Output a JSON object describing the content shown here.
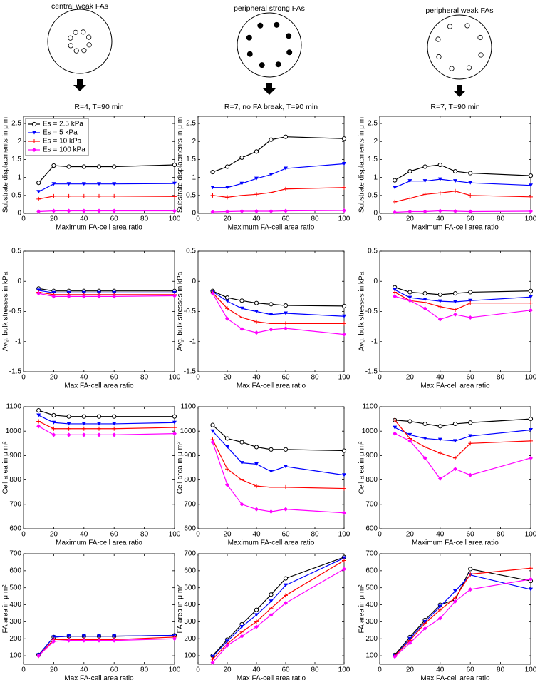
{
  "diagrams": [
    {
      "label": "central weak FAs"
    },
    {
      "label": "peripheral strong FAs"
    },
    {
      "label": "peripheral weak FAs"
    }
  ],
  "chart_data": [
    {
      "type": "line",
      "title": "R=4, T=90 min",
      "xlabel": "Maximum FA-cell area ratio",
      "ylabel": "Substrate displacments in μ m",
      "xlim": [
        0,
        100
      ],
      "xticks": [
        0,
        20,
        40,
        60,
        80,
        100
      ],
      "ylim": [
        0,
        2.7
      ],
      "yticks": [
        0,
        0.5,
        1,
        1.5,
        2,
        2.5
      ],
      "legend": "upper left",
      "x": [
        10,
        20,
        30,
        40,
        50,
        60,
        100
      ],
      "series": [
        {
          "name": "Es = 2.5 kPa",
          "color": "#000000",
          "marker": "o",
          "values": [
            0.85,
            1.33,
            1.3,
            1.3,
            1.3,
            1.3,
            1.35
          ]
        },
        {
          "name": "Es = 5 kPa",
          "color": "#0000ff",
          "marker": "v",
          "values": [
            0.6,
            0.82,
            0.82,
            0.82,
            0.82,
            0.82,
            0.83
          ]
        },
        {
          "name": "Es = 10 kPa",
          "color": "#ff0000",
          "marker": "+",
          "values": [
            0.4,
            0.48,
            0.48,
            0.48,
            0.48,
            0.48,
            0.47
          ]
        },
        {
          "name": "Es = 100 kPa",
          "color": "#ff00ff",
          "marker": "d",
          "values": [
            0.05,
            0.07,
            0.07,
            0.07,
            0.07,
            0.07,
            0.07
          ]
        }
      ]
    },
    {
      "type": "line",
      "title": "R=7, no FA break, T=90 min",
      "xlabel": "Maximum FA-cell area ratio",
      "ylabel": "Substrate displacments in μ m",
      "xlim": [
        0,
        100
      ],
      "xticks": [
        0,
        20,
        40,
        60,
        80,
        100
      ],
      "ylim": [
        0,
        2.7
      ],
      "yticks": [
        0,
        0.5,
        1,
        1.5,
        2,
        2.5
      ],
      "x": [
        10,
        20,
        30,
        40,
        50,
        60,
        100
      ],
      "series": [
        {
          "color": "#000000",
          "marker": "o",
          "values": [
            1.15,
            1.3,
            1.55,
            1.72,
            2.05,
            2.13,
            2.08
          ]
        },
        {
          "color": "#0000ff",
          "marker": "v",
          "values": [
            0.72,
            0.72,
            0.83,
            0.97,
            1.08,
            1.25,
            1.38
          ]
        },
        {
          "color": "#ff0000",
          "marker": "+",
          "values": [
            0.5,
            0.45,
            0.5,
            0.53,
            0.58,
            0.68,
            0.72
          ]
        },
        {
          "color": "#ff00ff",
          "marker": "d",
          "values": [
            0.04,
            0.05,
            0.06,
            0.06,
            0.06,
            0.07,
            0.08
          ]
        }
      ]
    },
    {
      "type": "line",
      "title": "R=7, T=90 min",
      "xlabel": "Maximum FA-cell area ratio",
      "ylabel": "Substrate displacments in μ m",
      "xlim": [
        0,
        100
      ],
      "xticks": [
        0,
        20,
        40,
        60,
        80,
        100
      ],
      "ylim": [
        0,
        2.7
      ],
      "yticks": [
        0,
        0.5,
        1,
        1.5,
        2,
        2.5
      ],
      "x": [
        10,
        20,
        30,
        40,
        50,
        60,
        100
      ],
      "series": [
        {
          "color": "#000000",
          "marker": "o",
          "values": [
            0.92,
            1.17,
            1.3,
            1.35,
            1.17,
            1.12,
            1.05
          ]
        },
        {
          "color": "#0000ff",
          "marker": "v",
          "values": [
            0.72,
            0.9,
            0.9,
            0.95,
            0.9,
            0.85,
            0.78
          ]
        },
        {
          "color": "#ff0000",
          "marker": "+",
          "values": [
            0.32,
            0.42,
            0.53,
            0.57,
            0.62,
            0.5,
            0.46
          ]
        },
        {
          "color": "#ff00ff",
          "marker": "d",
          "values": [
            0.03,
            0.05,
            0.05,
            0.07,
            0.06,
            0.05,
            0.06
          ]
        }
      ]
    },
    {
      "type": "line",
      "xlabel": "Max FA-cell area ratio",
      "ylabel": "Avg. bulk stresses in kPa",
      "xlim": [
        0,
        100
      ],
      "xticks": [
        0,
        20,
        40,
        60,
        80,
        100
      ],
      "ylim": [
        -1.5,
        0.5
      ],
      "yticks": [
        -1.5,
        -1,
        -0.5,
        0,
        0.5
      ],
      "x": [
        10,
        20,
        30,
        40,
        50,
        60,
        100
      ],
      "series": [
        {
          "color": "#000000",
          "marker": "o",
          "values": [
            -0.12,
            -0.16,
            -0.16,
            -0.16,
            -0.16,
            -0.16,
            -0.16
          ]
        },
        {
          "color": "#0000ff",
          "marker": "v",
          "values": [
            -0.15,
            -0.19,
            -0.19,
            -0.19,
            -0.19,
            -0.19,
            -0.19
          ]
        },
        {
          "color": "#ff0000",
          "marker": "+",
          "values": [
            -0.18,
            -0.22,
            -0.22,
            -0.22,
            -0.22,
            -0.22,
            -0.22
          ]
        },
        {
          "color": "#ff00ff",
          "marker": "d",
          "values": [
            -0.2,
            -0.25,
            -0.25,
            -0.25,
            -0.25,
            -0.25,
            -0.24
          ]
        }
      ]
    },
    {
      "type": "line",
      "xlabel": "Max FA-cell area ratio",
      "ylabel": "Avg. bulk stresses in kPa",
      "xlim": [
        0,
        100
      ],
      "xticks": [
        0,
        20,
        40,
        60,
        80,
        100
      ],
      "ylim": [
        -1.5,
        0.5
      ],
      "yticks": [
        -1.5,
        -1,
        -0.5,
        0,
        0.5
      ],
      "x": [
        10,
        20,
        30,
        40,
        50,
        60,
        100
      ],
      "series": [
        {
          "color": "#000000",
          "marker": "o",
          "values": [
            -0.16,
            -0.27,
            -0.32,
            -0.36,
            -0.38,
            -0.4,
            -0.41
          ]
        },
        {
          "color": "#0000ff",
          "marker": "v",
          "values": [
            -0.17,
            -0.33,
            -0.45,
            -0.5,
            -0.55,
            -0.53,
            -0.58
          ]
        },
        {
          "color": "#ff0000",
          "marker": "+",
          "values": [
            -0.19,
            -0.45,
            -0.6,
            -0.67,
            -0.7,
            -0.7,
            -0.7
          ]
        },
        {
          "color": "#ff00ff",
          "marker": "d",
          "values": [
            -0.2,
            -0.62,
            -0.79,
            -0.85,
            -0.8,
            -0.78,
            -0.88
          ]
        }
      ]
    },
    {
      "type": "line",
      "xlabel": "Max FA-cell area ratio",
      "ylabel": "Avg. bulk stresses in kPa",
      "xlim": [
        0,
        100
      ],
      "xticks": [
        0,
        20,
        40,
        60,
        80,
        100
      ],
      "ylim": [
        -1.5,
        0.5
      ],
      "yticks": [
        -1.5,
        -1,
        -0.5,
        0,
        0.5
      ],
      "x": [
        10,
        20,
        30,
        40,
        50,
        60,
        100
      ],
      "series": [
        {
          "color": "#000000",
          "marker": "o",
          "values": [
            -0.1,
            -0.18,
            -0.2,
            -0.22,
            -0.2,
            -0.18,
            -0.16
          ]
        },
        {
          "color": "#0000ff",
          "marker": "v",
          "values": [
            -0.14,
            -0.27,
            -0.3,
            -0.33,
            -0.34,
            -0.32,
            -0.26
          ]
        },
        {
          "color": "#ff0000",
          "marker": "+",
          "values": [
            -0.18,
            -0.32,
            -0.35,
            -0.42,
            -0.47,
            -0.36,
            -0.36
          ]
        },
        {
          "color": "#ff00ff",
          "marker": "d",
          "values": [
            -0.25,
            -0.32,
            -0.45,
            -0.63,
            -0.55,
            -0.6,
            -0.48
          ]
        }
      ]
    },
    {
      "type": "line",
      "xlabel": "Maximum FA-cell area ratio",
      "ylabel": "Cell area in μ m²",
      "xlim": [
        0,
        100
      ],
      "xticks": [
        0,
        20,
        40,
        60,
        80,
        100
      ],
      "ylim": [
        600,
        1100
      ],
      "yticks": [
        600,
        700,
        800,
        900,
        1000,
        1100
      ],
      "x": [
        10,
        20,
        30,
        40,
        50,
        60,
        100
      ],
      "series": [
        {
          "color": "#000000",
          "marker": "o",
          "values": [
            1085,
            1065,
            1060,
            1060,
            1060,
            1060,
            1060
          ]
        },
        {
          "color": "#0000ff",
          "marker": "v",
          "values": [
            1065,
            1035,
            1030,
            1030,
            1030,
            1030,
            1035
          ]
        },
        {
          "color": "#ff0000",
          "marker": "+",
          "values": [
            1040,
            1010,
            1010,
            1010,
            1010,
            1010,
            1015
          ]
        },
        {
          "color": "#ff00ff",
          "marker": "d",
          "values": [
            1020,
            985,
            985,
            985,
            985,
            985,
            990
          ]
        }
      ]
    },
    {
      "type": "line",
      "xlabel": "Maximum FA-cell area ratio",
      "ylabel": "Cell area in μ m²",
      "xlim": [
        0,
        100
      ],
      "xticks": [
        0,
        20,
        40,
        60,
        80,
        100
      ],
      "ylim": [
        600,
        1100
      ],
      "yticks": [
        600,
        700,
        800,
        900,
        1000,
        1100
      ],
      "x": [
        10,
        20,
        30,
        40,
        50,
        60,
        100
      ],
      "series": [
        {
          "color": "#000000",
          "marker": "o",
          "values": [
            1025,
            970,
            955,
            935,
            925,
            925,
            920
          ]
        },
        {
          "color": "#0000ff",
          "marker": "v",
          "values": [
            1000,
            935,
            870,
            865,
            835,
            855,
            820
          ]
        },
        {
          "color": "#ff0000",
          "marker": "+",
          "values": [
            965,
            845,
            800,
            775,
            770,
            770,
            765
          ]
        },
        {
          "color": "#ff00ff",
          "marker": "d",
          "values": [
            955,
            780,
            700,
            680,
            670,
            680,
            665
          ]
        }
      ]
    },
    {
      "type": "line",
      "xlabel": "Maximum FA-cell area ratio",
      "ylabel": "Cell area in μ m²",
      "xlim": [
        0,
        100
      ],
      "xticks": [
        0,
        20,
        40,
        60,
        80,
        100
      ],
      "ylim": [
        600,
        1100
      ],
      "yticks": [
        600,
        700,
        800,
        900,
        1000,
        1100
      ],
      "x": [
        10,
        20,
        30,
        40,
        50,
        60,
        100
      ],
      "series": [
        {
          "color": "#000000",
          "marker": "o",
          "values": [
            1045,
            1040,
            1030,
            1020,
            1030,
            1035,
            1050
          ]
        },
        {
          "color": "#0000ff",
          "marker": "v",
          "values": [
            1015,
            985,
            970,
            965,
            960,
            980,
            1005
          ]
        },
        {
          "color": "#ff0000",
          "marker": "+",
          "values": [
            1045,
            970,
            935,
            910,
            890,
            950,
            960
          ]
        },
        {
          "color": "#ff00ff",
          "marker": "d",
          "values": [
            990,
            960,
            890,
            805,
            845,
            820,
            890
          ]
        }
      ]
    },
    {
      "type": "line",
      "xlabel": "Max FA-cell area ratio",
      "ylabel": "FA area in μ m²",
      "xlim": [
        0,
        100
      ],
      "xticks": [
        0,
        20,
        40,
        60,
        80,
        100
      ],
      "ylim": [
        50,
        700
      ],
      "yticks": [
        100,
        200,
        300,
        400,
        500,
        600,
        700
      ],
      "x": [
        10,
        20,
        30,
        40,
        50,
        60,
        100
      ],
      "series": [
        {
          "color": "#000000",
          "marker": "o",
          "values": [
            105,
            210,
            215,
            215,
            215,
            215,
            220
          ]
        },
        {
          "color": "#0000ff",
          "marker": "v",
          "values": [
            105,
            210,
            215,
            215,
            215,
            215,
            220
          ]
        },
        {
          "color": "#ff0000",
          "marker": "+",
          "values": [
            100,
            195,
            195,
            195,
            195,
            195,
            210
          ]
        },
        {
          "color": "#ff00ff",
          "marker": "d",
          "values": [
            100,
            185,
            190,
            190,
            190,
            190,
            200
          ]
        }
      ]
    },
    {
      "type": "line",
      "xlabel": "Max FA-cell area ratio",
      "ylabel": "FA area in μ m²",
      "xlim": [
        0,
        100
      ],
      "xticks": [
        0,
        20,
        40,
        60,
        80,
        100
      ],
      "ylim": [
        50,
        700
      ],
      "yticks": [
        100,
        200,
        300,
        400,
        500,
        600,
        700
      ],
      "x": [
        10,
        20,
        30,
        40,
        50,
        60,
        100
      ],
      "series": [
        {
          "color": "#000000",
          "marker": "o",
          "values": [
            100,
            195,
            285,
            370,
            460,
            555,
            680
          ]
        },
        {
          "color": "#0000ff",
          "marker": "v",
          "values": [
            95,
            185,
            270,
            340,
            420,
            515,
            675
          ]
        },
        {
          "color": "#ff0000",
          "marker": "+",
          "values": [
            80,
            170,
            240,
            300,
            380,
            455,
            660
          ]
        },
        {
          "color": "#ff00ff",
          "marker": "d",
          "values": [
            60,
            160,
            215,
            270,
            340,
            410,
            610
          ]
        }
      ]
    },
    {
      "type": "line",
      "xlabel": "Max FA-cell area ratio",
      "ylabel": "FA area in μ m²",
      "xlim": [
        0,
        100
      ],
      "xticks": [
        0,
        20,
        40,
        60,
        80,
        100
      ],
      "ylim": [
        50,
        700
      ],
      "yticks": [
        100,
        200,
        300,
        400,
        500,
        600,
        700
      ],
      "x": [
        10,
        20,
        30,
        40,
        50,
        60,
        100
      ],
      "series": [
        {
          "color": "#000000",
          "marker": "o",
          "values": [
            105,
            210,
            310,
            400,
            430,
            610,
            540
          ]
        },
        {
          "color": "#0000ff",
          "marker": "v",
          "values": [
            100,
            200,
            300,
            390,
            480,
            575,
            490
          ]
        },
        {
          "color": "#ff0000",
          "marker": "+",
          "values": [
            100,
            190,
            290,
            370,
            440,
            580,
            615
          ]
        },
        {
          "color": "#ff00ff",
          "marker": "d",
          "values": [
            95,
            175,
            260,
            320,
            420,
            490,
            550
          ]
        }
      ]
    }
  ]
}
